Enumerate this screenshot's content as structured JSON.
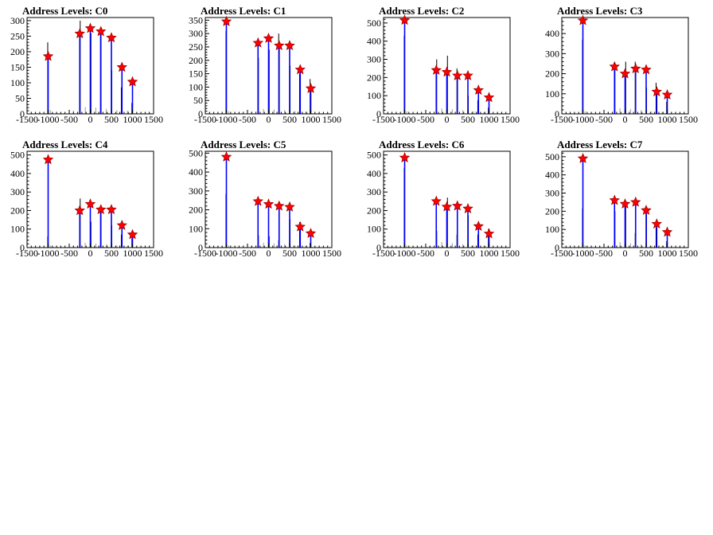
{
  "chart_data": [
    {
      "type": "bar",
      "title": "Address Levels: C0",
      "xlim": [
        -1500,
        1500
      ],
      "ylim": [
        0,
        310
      ],
      "xticks": [
        -1500,
        -1000,
        -500,
        0,
        500,
        1000,
        1500
      ],
      "yticks": [
        0,
        50,
        100,
        150,
        200,
        250,
        300
      ],
      "peaks": [
        [
          -1000,
          185
        ],
        [
          -250,
          258
        ],
        [
          0,
          275
        ],
        [
          250,
          265
        ],
        [
          500,
          245
        ],
        [
          750,
          150
        ],
        [
          1000,
          103
        ]
      ],
      "grays": [
        [
          -950,
          12
        ],
        [
          -400,
          10
        ],
        [
          -120,
          22
        ],
        [
          130,
          20
        ],
        [
          380,
          16
        ],
        [
          630,
          12
        ],
        [
          880,
          10
        ]
      ],
      "minors": [
        [
          -1010,
          230
        ],
        [
          -240,
          300
        ],
        [
          15,
          260
        ],
        [
          240,
          270
        ],
        [
          510,
          140
        ],
        [
          735,
          85
        ],
        [
          985,
          35
        ]
      ]
    },
    {
      "type": "bar",
      "title": "Address Levels: C1",
      "xlim": [
        -1500,
        1500
      ],
      "ylim": [
        0,
        360
      ],
      "xticks": [
        -1500,
        -1000,
        -500,
        0,
        500,
        1000,
        1500
      ],
      "yticks": [
        0,
        50,
        100,
        150,
        200,
        250,
        300,
        350
      ],
      "peaks": [
        [
          -1000,
          345
        ],
        [
          -250,
          265
        ],
        [
          0,
          282
        ],
        [
          250,
          255
        ],
        [
          500,
          255
        ],
        [
          750,
          165
        ],
        [
          1000,
          95
        ]
      ],
      "grays": [
        [
          -950,
          10
        ],
        [
          -400,
          8
        ],
        [
          -120,
          18
        ],
        [
          130,
          16
        ],
        [
          380,
          14
        ],
        [
          630,
          10
        ],
        [
          880,
          8
        ]
      ],
      "minors": [
        [
          -1010,
          310
        ],
        [
          -240,
          210
        ],
        [
          15,
          240
        ],
        [
          240,
          300
        ],
        [
          510,
          180
        ],
        [
          735,
          150
        ],
        [
          985,
          130
        ]
      ]
    },
    {
      "type": "bar",
      "title": "Address Levels: C2",
      "xlim": [
        -1500,
        1500
      ],
      "ylim": [
        0,
        530
      ],
      "xticks": [
        -1500,
        -1000,
        -500,
        0,
        500,
        1000,
        1500
      ],
      "yticks": [
        0,
        100,
        200,
        300,
        400,
        500
      ],
      "peaks": [
        [
          -1000,
          515
        ],
        [
          -250,
          240
        ],
        [
          0,
          230
        ],
        [
          250,
          210
        ],
        [
          500,
          210
        ],
        [
          750,
          130
        ],
        [
          1000,
          90
        ]
      ],
      "grays": [
        [
          -950,
          14
        ],
        [
          -400,
          12
        ],
        [
          -120,
          30
        ],
        [
          130,
          25
        ],
        [
          380,
          20
        ],
        [
          630,
          14
        ],
        [
          880,
          10
        ]
      ],
      "minors": [
        [
          -1010,
          430
        ],
        [
          -240,
          300
        ],
        [
          15,
          320
        ],
        [
          240,
          250
        ],
        [
          510,
          100
        ],
        [
          735,
          75
        ],
        [
          985,
          35
        ]
      ]
    },
    {
      "type": "bar",
      "title": "Address Levels: C3",
      "xlim": [
        -1500,
        1500
      ],
      "ylim": [
        0,
        480
      ],
      "xticks": [
        -1500,
        -1000,
        -500,
        0,
        500,
        1000,
        1500
      ],
      "yticks": [
        0,
        100,
        200,
        300,
        400
      ],
      "peaks": [
        [
          -1000,
          465
        ],
        [
          -250,
          235
        ],
        [
          0,
          200
        ],
        [
          250,
          225
        ],
        [
          500,
          220
        ],
        [
          750,
          110
        ],
        [
          1000,
          95
        ]
      ],
      "grays": [
        [
          -950,
          12
        ],
        [
          -400,
          10
        ],
        [
          -120,
          28
        ],
        [
          130,
          24
        ],
        [
          380,
          18
        ],
        [
          630,
          12
        ],
        [
          880,
          10
        ]
      ],
      "minors": [
        [
          -1010,
          370
        ],
        [
          -240,
          250
        ],
        [
          15,
          260
        ],
        [
          240,
          260
        ],
        [
          510,
          130
        ],
        [
          735,
          155
        ],
        [
          985,
          60
        ]
      ]
    },
    {
      "type": "bar",
      "title": "Address Levels: C4",
      "xlim": [
        -1500,
        1500
      ],
      "ylim": [
        0,
        520
      ],
      "xticks": [
        -1500,
        -1000,
        -500,
        0,
        500,
        1000,
        1500
      ],
      "yticks": [
        0,
        100,
        200,
        300,
        400,
        500
      ],
      "peaks": [
        [
          -1000,
          475
        ],
        [
          -250,
          200
        ],
        [
          0,
          235
        ],
        [
          250,
          205
        ],
        [
          500,
          205
        ],
        [
          750,
          120
        ],
        [
          1000,
          70
        ]
      ],
      "grays": [
        [
          -950,
          12
        ],
        [
          -400,
          10
        ],
        [
          -120,
          26
        ],
        [
          130,
          22
        ],
        [
          380,
          18
        ],
        [
          630,
          12
        ],
        [
          880,
          10
        ]
      ],
      "minors": [
        [
          -1010,
          60
        ],
        [
          -240,
          265
        ],
        [
          15,
          140
        ],
        [
          240,
          225
        ],
        [
          510,
          120
        ],
        [
          735,
          70
        ],
        [
          985,
          50
        ]
      ]
    },
    {
      "type": "bar",
      "title": "Address Levels: C5",
      "xlim": [
        -1500,
        1500
      ],
      "ylim": [
        0,
        510
      ],
      "xticks": [
        -1500,
        -1000,
        -500,
        0,
        500,
        1000,
        1500
      ],
      "yticks": [
        0,
        100,
        200,
        300,
        400,
        500
      ],
      "peaks": [
        [
          -1000,
          480
        ],
        [
          -250,
          245
        ],
        [
          0,
          230
        ],
        [
          250,
          220
        ],
        [
          500,
          215
        ],
        [
          750,
          110
        ],
        [
          1000,
          75
        ]
      ],
      "grays": [
        [
          -950,
          12
        ],
        [
          -400,
          10
        ],
        [
          -120,
          26
        ],
        [
          130,
          22
        ],
        [
          380,
          18
        ],
        [
          630,
          12
        ],
        [
          880,
          10
        ]
      ],
      "minors": [
        [
          -1010,
          285
        ],
        [
          -240,
          65
        ],
        [
          15,
          60
        ],
        [
          240,
          40
        ],
        [
          510,
          150
        ],
        [
          735,
          135
        ],
        [
          985,
          25
        ]
      ]
    },
    {
      "type": "bar",
      "title": "Address Levels: C6",
      "xlim": [
        -1500,
        1500
      ],
      "ylim": [
        0,
        520
      ],
      "xticks": [
        -1500,
        -1000,
        -500,
        0,
        500,
        1000,
        1500
      ],
      "yticks": [
        0,
        100,
        200,
        300,
        400,
        500
      ],
      "peaks": [
        [
          -1000,
          485
        ],
        [
          -250,
          250
        ],
        [
          0,
          220
        ],
        [
          250,
          225
        ],
        [
          500,
          210
        ],
        [
          750,
          115
        ],
        [
          1000,
          75
        ]
      ],
      "grays": [
        [
          -950,
          12
        ],
        [
          -400,
          10
        ],
        [
          -120,
          30
        ],
        [
          130,
          24
        ],
        [
          380,
          18
        ],
        [
          630,
          12
        ],
        [
          880,
          10
        ]
      ],
      "minors": [
        [
          -1010,
          430
        ],
        [
          -240,
          90
        ],
        [
          15,
          270
        ],
        [
          240,
          70
        ],
        [
          510,
          175
        ],
        [
          735,
          70
        ],
        [
          985,
          100
        ]
      ]
    },
    {
      "type": "bar",
      "title": "Address Levels: C7",
      "xlim": [
        -1500,
        1500
      ],
      "ylim": [
        0,
        530
      ],
      "xticks": [
        -1500,
        -1000,
        -500,
        0,
        500,
        1000,
        1500
      ],
      "yticks": [
        0,
        100,
        200,
        300,
        400,
        500
      ],
      "peaks": [
        [
          -1000,
          490
        ],
        [
          -250,
          260
        ],
        [
          0,
          240
        ],
        [
          250,
          250
        ],
        [
          500,
          205
        ],
        [
          750,
          130
        ],
        [
          1000,
          85
        ]
      ],
      "grays": [
        [
          -950,
          12
        ],
        [
          -400,
          10
        ],
        [
          -120,
          30
        ],
        [
          130,
          24
        ],
        [
          380,
          18
        ],
        [
          630,
          12
        ],
        [
          880,
          10
        ]
      ],
      "minors": [
        [
          -1010,
          215
        ],
        [
          -240,
          200
        ],
        [
          15,
          240
        ],
        [
          240,
          80
        ],
        [
          510,
          185
        ],
        [
          735,
          110
        ],
        [
          985,
          35
        ]
      ]
    }
  ],
  "colors": {
    "peak": "#0000ff",
    "minor": "#000000",
    "gray": "#999999",
    "marker": "#ff0000",
    "marker_edge": "#990000",
    "frame": "#000000"
  }
}
